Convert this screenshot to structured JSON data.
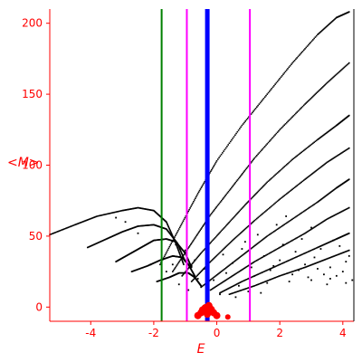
{
  "chart_data": {
    "type": "scatter",
    "title": "",
    "xlabel": "E",
    "ylabel": "<M>",
    "xlim": [
      -5.3,
      4.35
    ],
    "ylim": [
      -10,
      210
    ],
    "x_ticks": [
      -4,
      -2,
      0,
      2,
      4
    ],
    "y_ticks": [
      0,
      50,
      100,
      150,
      200
    ],
    "grid": false,
    "colors": {
      "axis": "#ff0000",
      "points": "#000000",
      "highlight": "#ff0000",
      "green_line": "#008000",
      "magenta_line": "#ff00ff",
      "blue_line": "#0000ff"
    },
    "vertical_lines": [
      {
        "x": -1.75,
        "color": "#008000",
        "width": 2
      },
      {
        "x": -0.95,
        "color": "#ff00ff",
        "width": 2
      },
      {
        "x": -0.3,
        "color": "#0000ff",
        "width": 5
      },
      {
        "x": 1.05,
        "color": "#ff00ff",
        "width": 2
      }
    ],
    "curves": [
      {
        "name": "",
        "x": [
          -5.3,
          -4.5,
          -3.8,
          -3.0,
          -2.5,
          -2.0,
          -1.6,
          -1.3,
          -1.05
        ],
        "y": [
          51,
          58,
          64,
          68,
          70,
          68,
          60,
          45,
          30
        ]
      },
      {
        "name": "",
        "x": [
          -4.1,
          -3.5,
          -3.0,
          -2.5,
          -2.0,
          -1.6,
          -1.25,
          -1.0
        ],
        "y": [
          42,
          48,
          53,
          57,
          58,
          55,
          45,
          32
        ]
      },
      {
        "name": "",
        "x": [
          -3.2,
          -2.8,
          -2.4,
          -2.0,
          -1.6,
          -1.3,
          -1.0,
          -0.8
        ],
        "y": [
          32,
          37,
          42,
          47,
          48,
          46,
          38,
          28
        ]
      },
      {
        "name": "",
        "x": [
          -2.7,
          -2.2,
          -1.8,
          -1.4,
          -1.1,
          -0.9,
          -0.7
        ],
        "y": [
          25,
          29,
          33,
          36,
          35,
          30,
          22
        ]
      },
      {
        "name": "",
        "x": [
          -1.9,
          -1.5,
          -1.2,
          -0.9,
          -0.7,
          -0.5
        ],
        "y": [
          18,
          21,
          24,
          24,
          21,
          15
        ]
      },
      {
        "name": "",
        "x": [
          -1.8,
          -1.2,
          -0.6,
          0.0,
          0.8,
          1.6,
          2.4,
          3.2,
          3.8,
          4.2
        ],
        "y": [
          30,
          55,
          80,
          103,
          128,
          150,
          172,
          192,
          204,
          208
        ]
      },
      {
        "name": "",
        "x": [
          -1.4,
          -0.8,
          -0.2,
          0.5,
          1.2,
          2.0,
          2.8,
          3.5,
          4.2
        ],
        "y": [
          25,
          45,
          65,
          85,
          105,
          125,
          143,
          158,
          172
        ]
      },
      {
        "name": "",
        "x": [
          -1.1,
          -0.5,
          0.2,
          0.9,
          1.6,
          2.4,
          3.2,
          3.8,
          4.2
        ],
        "y": [
          22,
          38,
          55,
          72,
          88,
          104,
          118,
          128,
          135
        ]
      },
      {
        "name": "",
        "x": [
          -0.8,
          -0.2,
          0.5,
          1.2,
          2.0,
          2.8,
          3.5,
          4.2
        ],
        "y": [
          18,
          32,
          47,
          61,
          76,
          90,
          102,
          112
        ]
      },
      {
        "name": "",
        "x": [
          -0.5,
          0.2,
          0.9,
          1.6,
          2.4,
          3.2,
          3.8,
          4.2
        ],
        "y": [
          14,
          26,
          38,
          50,
          62,
          74,
          84,
          90
        ]
      },
      {
        "name": "",
        "x": [
          -0.2,
          0.5,
          1.2,
          2.0,
          2.8,
          3.5,
          4.2
        ],
        "y": [
          12,
          22,
          32,
          42,
          52,
          62,
          70
        ]
      },
      {
        "name": "",
        "x": [
          0.1,
          0.8,
          1.6,
          2.4,
          3.2,
          3.8,
          4.2
        ],
        "y": [
          10,
          18,
          26,
          34,
          42,
          48,
          52
        ]
      },
      {
        "name": "",
        "x": [
          0.4,
          1.2,
          2.0,
          2.8,
          3.5,
          4.2
        ],
        "y": [
          9,
          15,
          22,
          28,
          34,
          40
        ]
      }
    ],
    "scatter_points": [
      [
        -3.2,
        63
      ],
      [
        -2.9,
        60
      ],
      [
        -2.5,
        52
      ],
      [
        -1.3,
        44
      ],
      [
        -1.0,
        40
      ],
      [
        -0.6,
        20
      ],
      [
        -0.9,
        12
      ],
      [
        -0.8,
        29
      ],
      [
        -0.4,
        27
      ],
      [
        -0.1,
        19
      ],
      [
        0.3,
        24
      ],
      [
        0.7,
        15
      ],
      [
        1.0,
        11
      ],
      [
        1.5,
        36
      ],
      [
        1.8,
        29
      ],
      [
        2.0,
        33
      ],
      [
        2.3,
        18
      ],
      [
        2.6,
        26
      ],
      [
        2.9,
        21
      ],
      [
        3.1,
        35
      ],
      [
        3.4,
        23
      ],
      [
        3.6,
        28
      ],
      [
        3.9,
        43
      ],
      [
        4.1,
        32
      ],
      [
        4.3,
        19
      ],
      [
        -1.2,
        16
      ],
      [
        -0.3,
        34
      ],
      [
        0.5,
        31
      ],
      [
        1.2,
        22
      ],
      [
        1.6,
        17
      ],
      [
        2.1,
        44
      ],
      [
        2.5,
        39
      ],
      [
        2.8,
        30
      ],
      [
        3.2,
        27
      ],
      [
        3.5,
        16
      ],
      [
        3.8,
        22
      ],
      [
        4.0,
        25
      ],
      [
        4.2,
        36
      ],
      [
        0.9,
        46
      ],
      [
        1.3,
        51
      ],
      [
        1.9,
        58
      ],
      [
        2.2,
        64
      ],
      [
        2.7,
        48
      ],
      [
        3.0,
        56
      ],
      [
        3.3,
        41
      ],
      [
        3.7,
        47
      ],
      [
        0.1,
        9
      ],
      [
        0.6,
        7
      ],
      [
        1.4,
        10
      ],
      [
        -1.6,
        25
      ],
      [
        -2.1,
        30
      ],
      [
        -1.4,
        30
      ],
      [
        -0.7,
        33
      ],
      [
        0.2,
        37
      ],
      [
        0.8,
        41
      ],
      [
        1.1,
        28
      ],
      [
        1.7,
        26
      ],
      [
        2.4,
        23
      ],
      [
        3.0,
        19
      ],
      [
        3.6,
        20
      ],
      [
        4.1,
        17
      ]
    ],
    "highlight_points": [
      {
        "x": -0.3,
        "y": -5,
        "size": 4
      },
      {
        "x": -0.5,
        "y": -4,
        "size": 4
      },
      {
        "x": -0.1,
        "y": -4,
        "size": 4
      },
      {
        "x": -0.35,
        "y": -1,
        "size": 5
      },
      {
        "x": -0.2,
        "y": -2,
        "size": 5
      },
      {
        "x": -0.45,
        "y": -2,
        "size": 4
      },
      {
        "x": -0.25,
        "y": 1,
        "size": 4
      },
      {
        "x": -0.6,
        "y": -6,
        "size": 4
      },
      {
        "x": 0.0,
        "y": -6,
        "size": 4
      },
      {
        "x": 0.35,
        "y": -7,
        "size": 3
      }
    ]
  }
}
